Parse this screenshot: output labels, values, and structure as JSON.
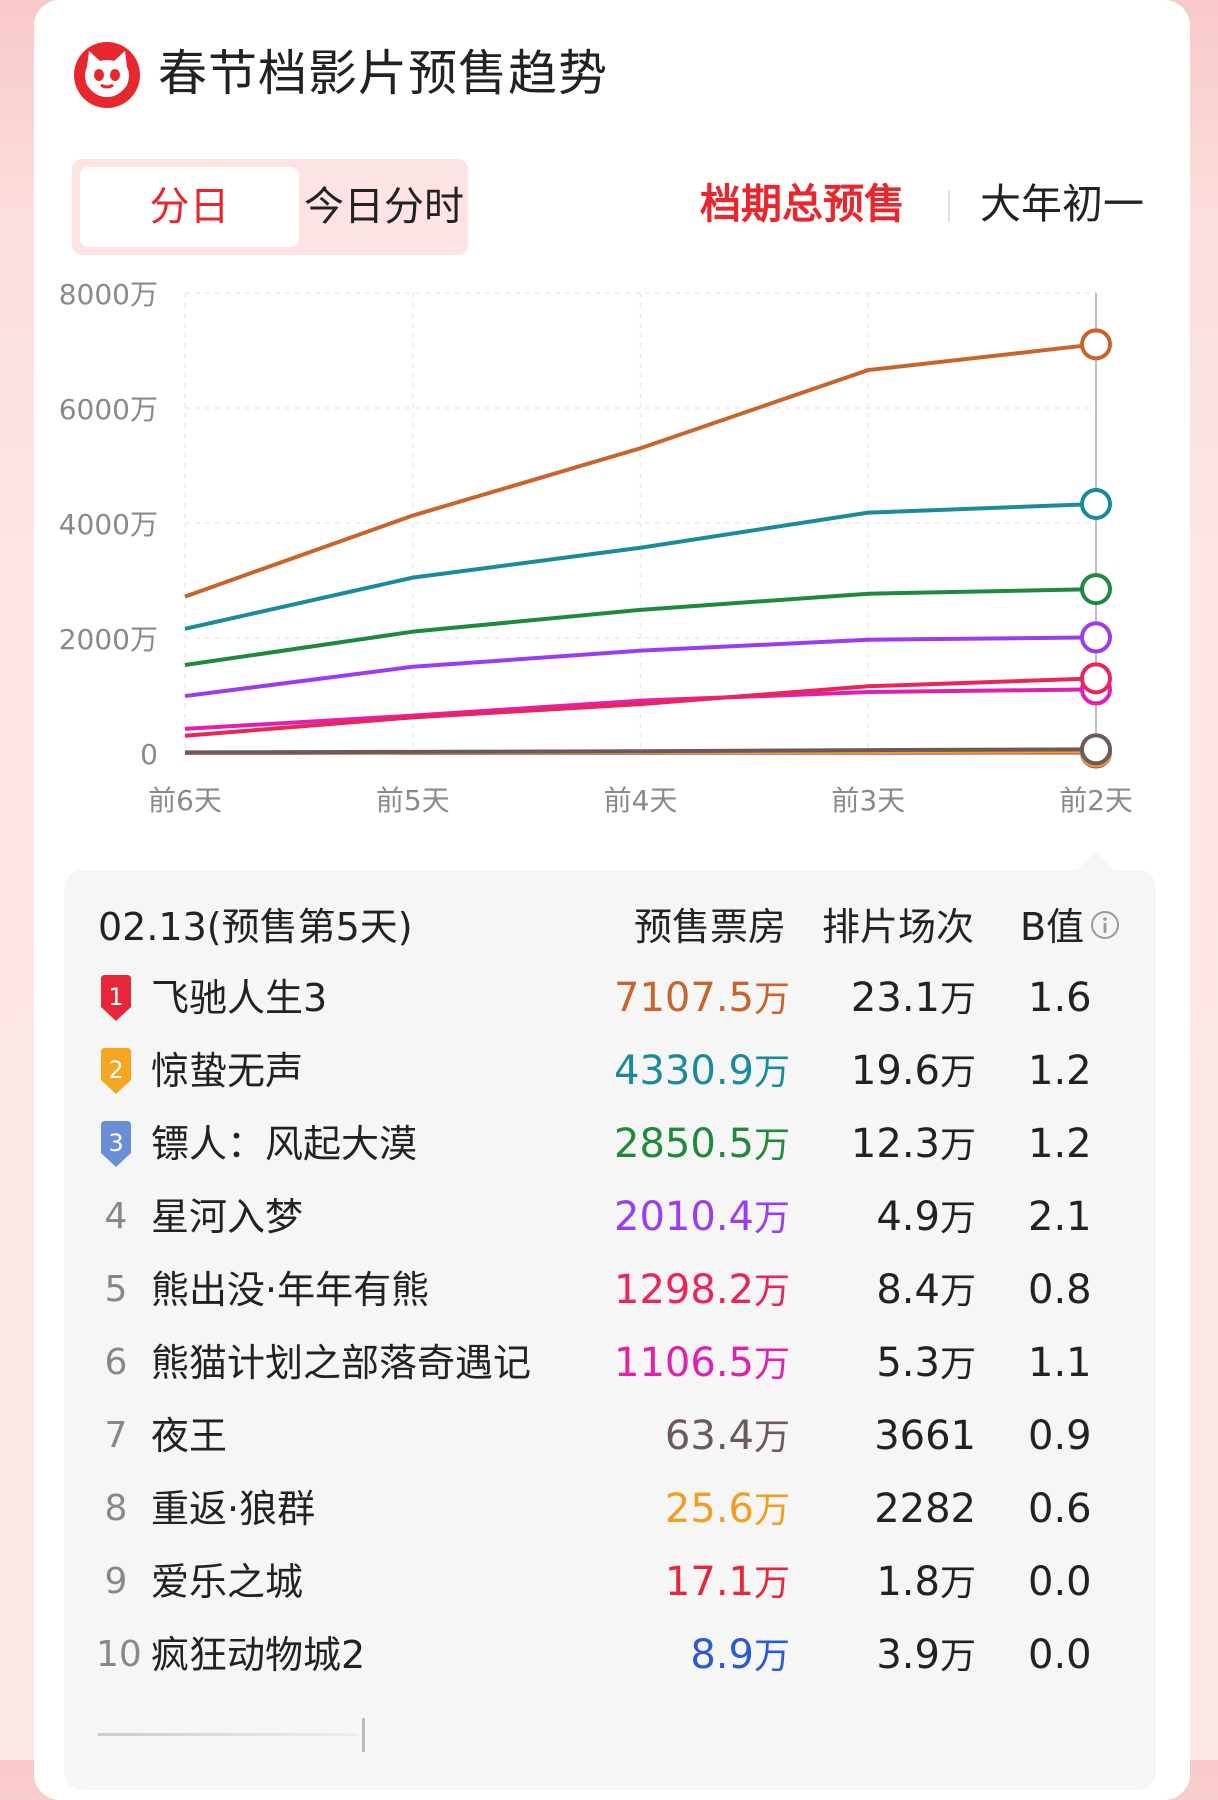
{
  "header": {
    "title": "春节档影片预售趋势"
  },
  "tabs": {
    "daily_label": "分日",
    "hourly_label": "今日分时"
  },
  "scope": {
    "total_label": "档期总预售",
    "day1_label": "大年初一"
  },
  "chart_data": {
    "type": "line",
    "title": "",
    "xlabel": "",
    "ylabel": "",
    "x": [
      "前6天",
      "前5天",
      "前4天",
      "前3天",
      "前2天"
    ],
    "ylim": [
      0,
      8000
    ],
    "y_unit": "万",
    "y_ticks": [
      "0",
      "2000万",
      "4000万",
      "6000万",
      "8000万"
    ],
    "grid": true,
    "series": [
      {
        "color": "#c8642c",
        "values": [
          2720,
          4130,
          5300,
          6660,
          7107.5
        ]
      },
      {
        "color": "#1a8b9a",
        "values": [
          2160,
          3050,
          3570,
          4180,
          4330.9
        ]
      },
      {
        "color": "#1f8a3c",
        "values": [
          1530,
          2110,
          2490,
          2770,
          2850.5
        ]
      },
      {
        "color": "#9b3cf0",
        "values": [
          990,
          1500,
          1780,
          1970,
          2010.4
        ]
      },
      {
        "color": "#e8265a",
        "values": [
          300,
          620,
          850,
          1160,
          1298.2
        ]
      },
      {
        "color": "#e020b0",
        "values": [
          420,
          650,
          910,
          1060,
          1106.5
        ]
      },
      {
        "color": "#6b5a5a",
        "values": [
          10,
          20,
          30,
          50,
          63.4
        ]
      },
      {
        "color": "#f0a020",
        "values": [
          5,
          10,
          15,
          20,
          25.6
        ]
      },
      {
        "color": "#e8263a",
        "values": [
          3,
          7,
          10,
          14,
          17.1
        ]
      },
      {
        "color": "#2a5ad8",
        "values": [
          2,
          4,
          5,
          7,
          8.9
        ]
      }
    ]
  },
  "table": {
    "date_label": "02.13(预售第5天)",
    "col_boxoffice": "预售票房",
    "col_shows": "排片场次",
    "col_bvalue": "B值",
    "rows": [
      {
        "rank": "1",
        "name": "飞驰人生3",
        "boxoffice": "7107.5",
        "bo_unit": "万",
        "bo_color": "#c8642c",
        "shows": "23.1",
        "shows_unit": "万",
        "bvalue": "1.6",
        "badge": "red"
      },
      {
        "rank": "2",
        "name": "惊蛰无声",
        "boxoffice": "4330.9",
        "bo_unit": "万",
        "bo_color": "#1a8b9a",
        "shows": "19.6",
        "shows_unit": "万",
        "bvalue": "1.2",
        "badge": "orange"
      },
      {
        "rank": "3",
        "name": "镖人：风起大漠",
        "boxoffice": "2850.5",
        "bo_unit": "万",
        "bo_color": "#1f8a3c",
        "shows": "12.3",
        "shows_unit": "万",
        "bvalue": "1.2",
        "badge": "blue"
      },
      {
        "rank": "4",
        "name": "星河入梦",
        "boxoffice": "2010.4",
        "bo_unit": "万",
        "bo_color": "#9b3cf0",
        "shows": "4.9",
        "shows_unit": "万",
        "bvalue": "2.1",
        "badge": ""
      },
      {
        "rank": "5",
        "name": "熊出没·年年有熊",
        "boxoffice": "1298.2",
        "bo_unit": "万",
        "bo_color": "#e8265a",
        "shows": "8.4",
        "shows_unit": "万",
        "bvalue": "0.8",
        "badge": ""
      },
      {
        "rank": "6",
        "name": "熊猫计划之部落奇遇记",
        "boxoffice": "1106.5",
        "bo_unit": "万",
        "bo_color": "#e020b0",
        "shows": "5.3",
        "shows_unit": "万",
        "bvalue": "1.1",
        "badge": ""
      },
      {
        "rank": "7",
        "name": "夜王",
        "boxoffice": "63.4",
        "bo_unit": "万",
        "bo_color": "#6b5a5a",
        "shows": "3661",
        "shows_unit": "",
        "bvalue": "0.9",
        "badge": ""
      },
      {
        "rank": "8",
        "name": "重返·狼群",
        "boxoffice": "25.6",
        "bo_unit": "万",
        "bo_color": "#f0a020",
        "shows": "2282",
        "shows_unit": "",
        "bvalue": "0.6",
        "badge": ""
      },
      {
        "rank": "9",
        "name": "爱乐之城",
        "boxoffice": "17.1",
        "bo_unit": "万",
        "bo_color": "#e8263a",
        "shows": "1.8",
        "shows_unit": "万",
        "bvalue": "0.0",
        "badge": ""
      },
      {
        "rank": "10",
        "name": "疯狂动物城2",
        "boxoffice": "8.9",
        "bo_unit": "万",
        "bo_color": "#2a5ad8",
        "shows": "3.9",
        "shows_unit": "万",
        "bvalue": "0.0",
        "badge": ""
      }
    ]
  },
  "colors": {
    "accent": "#e8262e",
    "badge_red": "#e8263a",
    "badge_orange": "#f5a623",
    "badge_blue": "#6a8fd6"
  }
}
